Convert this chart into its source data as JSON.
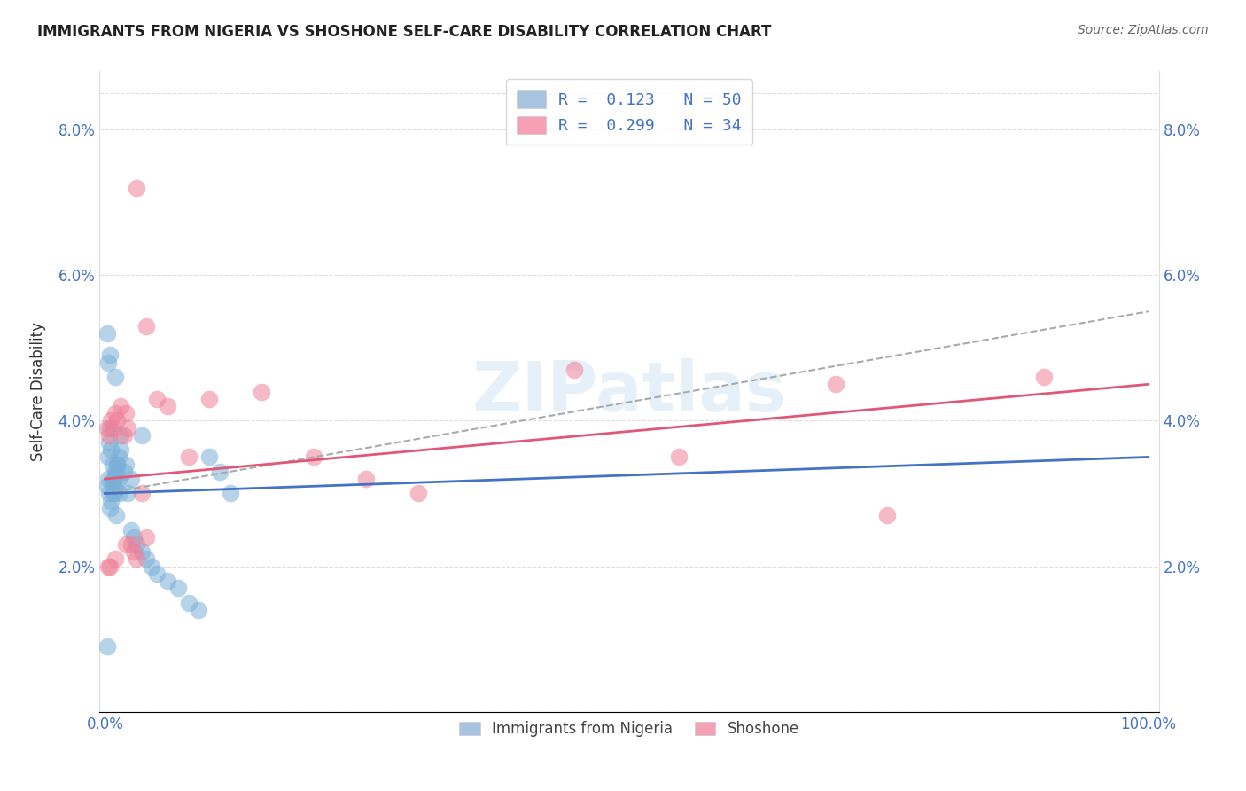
{
  "title": "IMMIGRANTS FROM NIGERIA VS SHOSHONE SELF-CARE DISABILITY CORRELATION CHART",
  "source": "Source: ZipAtlas.com",
  "ylabel": "Self-Care Disability",
  "xlim": [
    0,
    100
  ],
  "ylim": [
    0,
    8.8
  ],
  "yticks": [
    2.0,
    4.0,
    6.0,
    8.0
  ],
  "ytick_labels": [
    "2.0%",
    "4.0%",
    "6.0%",
    "8.0%"
  ],
  "legend_entries": [
    {
      "label": "R =  0.123   N = 50",
      "color": "#a8c4e0"
    },
    {
      "label": "R =  0.299   N = 34",
      "color": "#f5a0b5"
    }
  ],
  "nigeria_color": "#7ab0d8",
  "shoshone_color": "#f08098",
  "nigeria_line_color": "#4472c4",
  "shoshone_line_color": "#e05878",
  "dashed_line_color": "#aaaaaa",
  "watermark": "ZIPatlas",
  "nigeria_x": [
    0.2,
    0.3,
    0.4,
    0.5,
    0.6,
    0.7,
    0.8,
    0.9,
    1.0,
    1.1,
    1.2,
    1.3,
    1.5,
    1.8,
    2.0,
    2.2,
    2.5,
    2.8,
    3.0,
    3.5,
    4.0,
    4.5,
    5.0,
    6.0,
    7.0,
    8.0,
    9.0,
    10.0,
    11.0,
    12.0,
    0.5,
    0.6,
    0.7,
    0.8,
    0.9,
    1.0,
    1.1,
    1.2,
    1.3,
    1.4,
    0.2,
    0.3,
    0.5,
    1.0,
    1.5,
    0.4,
    2.5,
    3.5,
    0.2,
    0.3
  ],
  "nigeria_y": [
    3.1,
    3.2,
    3.0,
    2.8,
    2.9,
    3.1,
    3.0,
    3.2,
    3.3,
    2.7,
    3.4,
    3.5,
    3.6,
    3.3,
    3.4,
    3.0,
    2.5,
    2.4,
    2.3,
    2.2,
    2.1,
    2.0,
    1.9,
    1.8,
    1.7,
    1.5,
    1.4,
    3.5,
    3.3,
    3.0,
    3.9,
    3.6,
    3.4,
    3.2,
    3.0,
    3.1,
    3.3,
    3.4,
    3.2,
    3.0,
    5.2,
    4.8,
    4.9,
    4.6,
    3.8,
    3.7,
    3.2,
    3.8,
    0.9,
    3.5
  ],
  "shoshone_x": [
    0.2,
    0.4,
    0.6,
    0.8,
    1.0,
    1.2,
    1.5,
    1.8,
    2.0,
    2.2,
    2.5,
    2.8,
    3.0,
    3.5,
    4.0,
    5.0,
    6.0,
    8.0,
    10.0,
    15.0,
    20.0,
    25.0,
    30.0,
    45.0,
    55.0,
    70.0,
    75.0,
    90.0,
    0.5,
    1.0,
    2.0,
    4.0,
    3.0,
    0.3
  ],
  "shoshone_y": [
    3.9,
    3.8,
    4.0,
    3.9,
    4.1,
    4.0,
    4.2,
    3.8,
    4.1,
    3.9,
    2.3,
    2.2,
    2.1,
    3.0,
    2.4,
    4.3,
    4.2,
    3.5,
    4.3,
    4.4,
    3.5,
    3.2,
    3.0,
    4.7,
    3.5,
    4.5,
    2.7,
    4.6,
    2.0,
    2.1,
    2.3,
    5.3,
    7.2,
    2.0
  ]
}
